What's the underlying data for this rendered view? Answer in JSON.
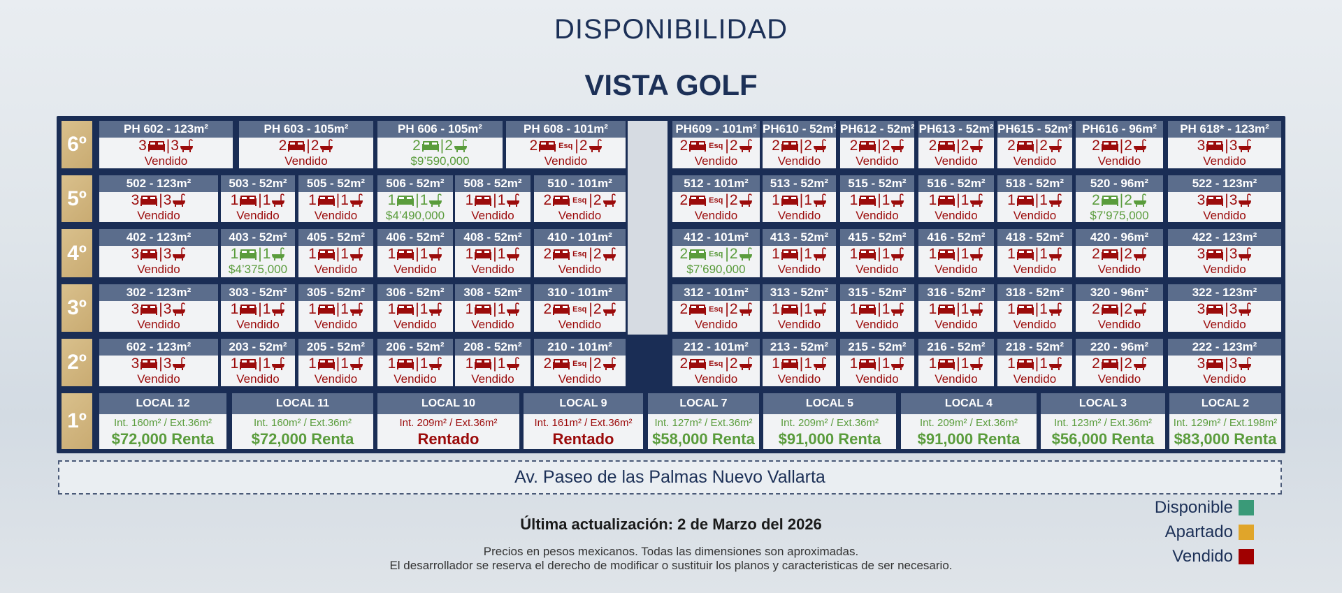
{
  "header": {
    "title": "DISPONIBILIDAD",
    "subtitle": "VISTA GOLF"
  },
  "colors": {
    "sold": "#9b0b0b",
    "available": "#5a9c3c",
    "disponible": "#3a9a78",
    "apartado": "#e0a52a",
    "vendido": "#a00000"
  },
  "floors": [
    {
      "label": "6º",
      "units": [
        {
          "title": "PH 602 - 123m²",
          "beds": "3",
          "baths": "3",
          "status": "sold",
          "text": "Vendido"
        },
        {
          "title": "PH 603 - 105m²",
          "beds": "2",
          "baths": "2",
          "status": "sold",
          "text": "Vendido"
        },
        {
          "title": "PH 606 - 105m²",
          "beds": "2",
          "baths": "2",
          "status": "available",
          "text": "$9’590,000"
        },
        {
          "title": "PH 608 - 101m²",
          "beds": "2",
          "esq": "Esq",
          "baths": "2",
          "status": "sold",
          "text": "Vendido"
        },
        {
          "title": "PH609 - 101m²",
          "beds": "2",
          "esq": "Esq",
          "baths": "2",
          "status": "sold",
          "text": "Vendido"
        },
        {
          "title": "PH610 - 52m²",
          "beds": "2",
          "baths": "2",
          "status": "sold",
          "text": "Vendido"
        },
        {
          "title": "PH612 - 52m²",
          "beds": "2",
          "baths": "2",
          "status": "sold",
          "text": "Vendido"
        },
        {
          "title": "PH613 - 52m²",
          "beds": "2",
          "baths": "2",
          "status": "sold",
          "text": "Vendido"
        },
        {
          "title": "PH615 - 52m²",
          "beds": "2",
          "baths": "2",
          "status": "sold",
          "text": "Vendido"
        },
        {
          "title": "PH616 - 96m²",
          "beds": "2",
          "baths": "2",
          "status": "sold",
          "text": "Vendido"
        },
        {
          "title": "PH 618* - 123m²",
          "beds": "3",
          "baths": "3",
          "status": "sold",
          "text": "Vendido"
        }
      ]
    },
    {
      "label": "5º",
      "units": [
        {
          "title": "502 - 123m²",
          "beds": "3",
          "baths": "3",
          "status": "sold",
          "text": "Vendido"
        },
        {
          "title": "503 - 52m²",
          "beds": "1",
          "baths": "1",
          "status": "sold",
          "text": "Vendido"
        },
        {
          "title": "505 - 52m²",
          "beds": "1",
          "baths": "1",
          "status": "sold",
          "text": "Vendido"
        },
        {
          "title": "506 - 52m²",
          "beds": "1",
          "baths": "1",
          "status": "available",
          "text": "$4’490,000"
        },
        {
          "title": "508 - 52m²",
          "beds": "1",
          "baths": "1",
          "status": "sold",
          "text": "Vendido"
        },
        {
          "title": "510 - 101m²",
          "beds": "2",
          "esq": "Esq",
          "baths": "2",
          "status": "sold",
          "text": "Vendido"
        },
        {
          "title": "512 - 101m²",
          "beds": "2",
          "esq": "Esq",
          "baths": "2",
          "status": "sold",
          "text": "Vendido"
        },
        {
          "title": "513 - 52m²",
          "beds": "1",
          "baths": "1",
          "status": "sold",
          "text": "Vendido"
        },
        {
          "title": "515 - 52m²",
          "beds": "1",
          "baths": "1",
          "status": "sold",
          "text": "Vendido"
        },
        {
          "title": "516 - 52m²",
          "beds": "1",
          "baths": "1",
          "status": "sold",
          "text": "Vendido"
        },
        {
          "title": "518 - 52m²",
          "beds": "1",
          "baths": "1",
          "status": "sold",
          "text": "Vendido"
        },
        {
          "title": "520 - 96m²",
          "beds": "2",
          "baths": "2",
          "status": "available",
          "text": "$7’975,000"
        },
        {
          "title": "522 - 123m²",
          "beds": "3",
          "baths": "3",
          "status": "sold",
          "text": "Vendido"
        }
      ]
    },
    {
      "label": "4º",
      "units": [
        {
          "title": "402 - 123m²",
          "beds": "3",
          "baths": "3",
          "status": "sold",
          "text": "Vendido"
        },
        {
          "title": "403 - 52m²",
          "beds": "1",
          "baths": "1",
          "status": "available",
          "text": "$4’375,000"
        },
        {
          "title": "405 - 52m²",
          "beds": "1",
          "baths": "1",
          "status": "sold",
          "text": "Vendido"
        },
        {
          "title": "406 - 52m²",
          "beds": "1",
          "baths": "1",
          "status": "sold",
          "text": "Vendido"
        },
        {
          "title": "408 - 52m²",
          "beds": "1",
          "baths": "1",
          "status": "sold",
          "text": "Vendido"
        },
        {
          "title": "410 - 101m²",
          "beds": "2",
          "esq": "Esq",
          "baths": "2",
          "status": "sold",
          "text": "Vendido"
        },
        {
          "title": "412 - 101m²",
          "beds": "2",
          "esq": "Esq",
          "baths": "2",
          "status": "available",
          "text": "$7’690,000"
        },
        {
          "title": "413 - 52m²",
          "beds": "1",
          "baths": "1",
          "status": "sold",
          "text": "Vendido"
        },
        {
          "title": "415 - 52m²",
          "beds": "1",
          "baths": "1",
          "status": "sold",
          "text": "Vendido"
        },
        {
          "title": "416 - 52m²",
          "beds": "1",
          "baths": "1",
          "status": "sold",
          "text": "Vendido"
        },
        {
          "title": "418 - 52m²",
          "beds": "1",
          "baths": "1",
          "status": "sold",
          "text": "Vendido"
        },
        {
          "title": "420 - 96m²",
          "beds": "2",
          "baths": "2",
          "status": "sold",
          "text": "Vendido"
        },
        {
          "title": "422 - 123m²",
          "beds": "3",
          "baths": "3",
          "status": "sold",
          "text": "Vendido"
        }
      ]
    },
    {
      "label": "3º",
      "units": [
        {
          "title": "302 - 123m²",
          "beds": "3",
          "baths": "3",
          "status": "sold",
          "text": "Vendido"
        },
        {
          "title": "303 - 52m²",
          "beds": "1",
          "baths": "1",
          "status": "sold",
          "text": "Vendido"
        },
        {
          "title": "305 - 52m²",
          "beds": "1",
          "baths": "1",
          "status": "sold",
          "text": "Vendido"
        },
        {
          "title": "306 - 52m²",
          "beds": "1",
          "baths": "1",
          "status": "sold",
          "text": "Vendido"
        },
        {
          "title": "308 - 52m²",
          "beds": "1",
          "baths": "1",
          "status": "sold",
          "text": "Vendido"
        },
        {
          "title": "310 - 101m²",
          "beds": "2",
          "esq": "Esq",
          "baths": "2",
          "status": "sold",
          "text": "Vendido"
        },
        {
          "title": "312 - 101m²",
          "beds": "2",
          "esq": "Esq",
          "baths": "2",
          "status": "sold",
          "text": "Vendido"
        },
        {
          "title": "313 - 52m²",
          "beds": "1",
          "baths": "1",
          "status": "sold",
          "text": "Vendido"
        },
        {
          "title": "315 - 52m²",
          "beds": "1",
          "baths": "1",
          "status": "sold",
          "text": "Vendido"
        },
        {
          "title": "316 - 52m²",
          "beds": "1",
          "baths": "1",
          "status": "sold",
          "text": "Vendido"
        },
        {
          "title": "318 - 52m²",
          "beds": "1",
          "baths": "1",
          "status": "sold",
          "text": "Vendido"
        },
        {
          "title": "320 - 96m²",
          "beds": "2",
          "baths": "2",
          "status": "sold",
          "text": "Vendido"
        },
        {
          "title": "322 - 123m²",
          "beds": "3",
          "baths": "3",
          "status": "sold",
          "text": "Vendido"
        }
      ]
    },
    {
      "label": "2º",
      "units": [
        {
          "title": "602 - 123m²",
          "beds": "3",
          "baths": "3",
          "status": "sold",
          "text": "Vendido"
        },
        {
          "title": "203 - 52m²",
          "beds": "1",
          "baths": "1",
          "status": "sold",
          "text": "Vendido"
        },
        {
          "title": "205 - 52m²",
          "beds": "1",
          "baths": "1",
          "status": "sold",
          "text": "Vendido"
        },
        {
          "title": "206 - 52m²",
          "beds": "1",
          "baths": "1",
          "status": "sold",
          "text": "Vendido"
        },
        {
          "title": "208 - 52m²",
          "beds": "1",
          "baths": "1",
          "status": "sold",
          "text": "Vendido"
        },
        {
          "title": "210 - 101m²",
          "beds": "2",
          "esq": "Esq",
          "baths": "2",
          "status": "sold",
          "text": "Vendido"
        },
        {
          "title": "212 - 101m²",
          "beds": "2",
          "esq": "Esq",
          "baths": "2",
          "status": "sold",
          "text": "Vendido"
        },
        {
          "title": "213 - 52m²",
          "beds": "1",
          "baths": "1",
          "status": "sold",
          "text": "Vendido"
        },
        {
          "title": "215 - 52m²",
          "beds": "1",
          "baths": "1",
          "status": "sold",
          "text": "Vendido"
        },
        {
          "title": "216 - 52m²",
          "beds": "1",
          "baths": "1",
          "status": "sold",
          "text": "Vendido"
        },
        {
          "title": "218 - 52m²",
          "beds": "1",
          "baths": "1",
          "status": "sold",
          "text": "Vendido"
        },
        {
          "title": "220 - 96m²",
          "beds": "2",
          "baths": "2",
          "status": "sold",
          "text": "Vendido"
        },
        {
          "title": "222 - 123m²",
          "beds": "3",
          "baths": "3",
          "status": "sold",
          "text": "Vendido"
        }
      ]
    },
    {
      "label": "1º",
      "locals": [
        {
          "title": "LOCAL 12",
          "size": "Int. 160m² / Ext.36m²",
          "price": "$72,000 Renta",
          "status": "available"
        },
        {
          "title": "LOCAL 11",
          "size": "Int. 160m² / Ext.36m²",
          "price": "$72,000 Renta",
          "status": "available"
        },
        {
          "title": "LOCAL 10",
          "size": "Int. 209m² / Ext.36m²",
          "price": "Rentado",
          "status": "sold"
        },
        {
          "title": "LOCAL 9",
          "size": "Int. 161m² / Ext.36m²",
          "price": "Rentado",
          "status": "sold"
        },
        {
          "title": "LOCAL 7",
          "size": "Int. 127m² / Ext.36m²",
          "price": "$58,000 Renta",
          "status": "available"
        },
        {
          "title": "LOCAL 5",
          "size": "Int. 209m² / Ext.36m²",
          "price": "$91,000 Renta",
          "status": "available"
        },
        {
          "title": "LOCAL 4",
          "size": "Int. 209m² / Ext.36m²",
          "price": "$91,000 Renta",
          "status": "available"
        },
        {
          "title": "LOCAL 3",
          "size": "Int. 123m² / Ext.36m²",
          "price": "$56,000 Renta",
          "status": "available"
        },
        {
          "title": "LOCAL 2",
          "size": "Int. 129m² / Ext.198m²",
          "price": "$83,000 Renta",
          "status": "available"
        }
      ]
    }
  ],
  "street": "Av. Paseo de las Palmas Nuevo Vallarta",
  "updated": "Última actualización: 2 de Marzo del 2026",
  "disclaimer1": "Precios en pesos mexicanos. Todas las dimensiones son aproximadas.",
  "disclaimer2": "El desarrollador se reserva el derecho de modificar o sustituir los planos y caracteristicas de ser necesario.",
  "legend": [
    {
      "label": "Disponible",
      "color": "#3a9a78"
    },
    {
      "label": "Apartado",
      "color": "#e0a52a"
    },
    {
      "label": "Vendido",
      "color": "#a00000"
    }
  ]
}
